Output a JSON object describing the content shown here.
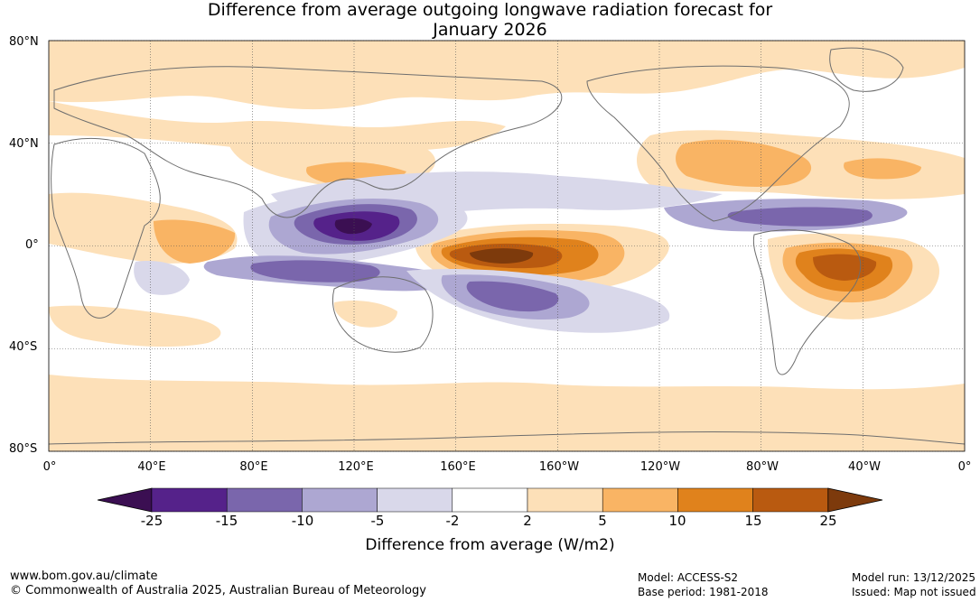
{
  "title": {
    "line1": "Difference from average outgoing longwave radiation forecast for",
    "line2": "January 2026"
  },
  "lat_labels": [
    "80°N",
    "40°N",
    "0°",
    "40°S",
    "80°S"
  ],
  "lon_labels": [
    "0°",
    "40°E",
    "80°E",
    "120°E",
    "160°E",
    "160°W",
    "120°W",
    "80°W",
    "40°W",
    "0°"
  ],
  "colorbar": {
    "ticks": [
      "-25",
      "-15",
      "-10",
      "-5",
      "-2",
      "2",
      "5",
      "10",
      "15",
      "25"
    ],
    "colors": [
      "#3b0f52",
      "#55228a",
      "#7a66ac",
      "#ada7d2",
      "#d9d8ea",
      "#ffffff",
      "#fde0b8",
      "#f9b464",
      "#e0821c",
      "#b95a10",
      "#7d3a0c"
    ],
    "label": "Difference from average (W/m2)"
  },
  "footer": {
    "website": "www.bom.gov.au/climate",
    "copyright": "© Commonwealth of Australia 2025, Australian Bureau of Meteorology",
    "model": "Model: ACCESS-S2",
    "base_period": "Base period: 1981-2018",
    "model_run": "Model run: 13/12/2025",
    "issued": "Issued: Map not issued"
  },
  "map_data": {
    "grid_lats": [
      80,
      40,
      0,
      -40,
      -80
    ],
    "grid_lons": [
      40,
      80,
      120,
      160,
      200,
      240,
      280,
      320
    ],
    "anomaly_regions": [
      {
        "level": "+2 to +5",
        "lon": [
          0,
          360
        ],
        "lat": [
          52,
          80
        ]
      },
      {
        "level": "+10 to +15",
        "lon": [
          178,
          218
        ],
        "lat": [
          -3,
          5
        ]
      },
      {
        "level": "+15 to +25",
        "lon": [
          165,
          205
        ],
        "lat": [
          -4,
          3
        ]
      },
      {
        "level": "+10 to +15",
        "lon": [
          305,
          345
        ],
        "lat": [
          -12,
          0
        ]
      },
      {
        "level": "-15 to -25",
        "lon": [
          110,
          135
        ],
        "lat": [
          3,
          12
        ]
      },
      {
        "level": "-10 to -15",
        "lon": [
          100,
          145
        ],
        "lat": [
          0,
          16
        ]
      },
      {
        "level": "-5 to -10",
        "lon": [
          240,
          340
        ],
        "lat": [
          5,
          20
        ]
      }
    ]
  }
}
